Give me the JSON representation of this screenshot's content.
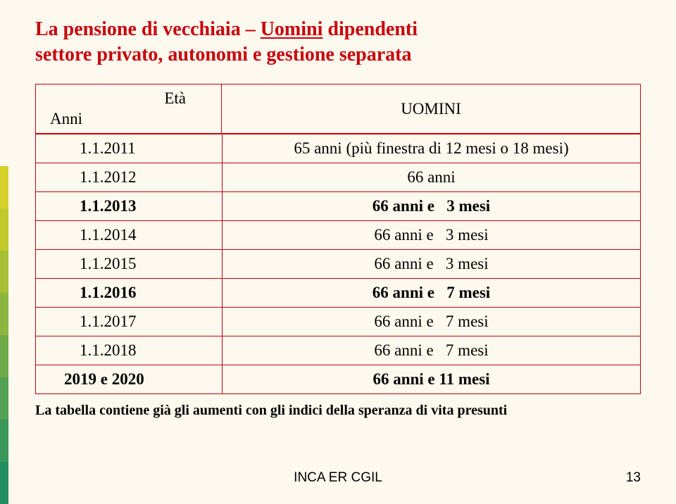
{
  "title": {
    "line1_part1": "La pensione di vecchiaia – ",
    "line1_underlined": "Uomini",
    "line1_part2": " dipendenti",
    "line2": "settore privato, autonomi e gestione separata",
    "color": "#c8000a"
  },
  "table": {
    "border_color": "#c8000a",
    "header": {
      "left_top": "Età",
      "left_bottom": "Anni",
      "right": "UOMINI"
    },
    "rows": [
      {
        "year": "1.1.2011",
        "value": "65 anni (più finestra di 12 mesi o 18 mesi)",
        "bold": false,
        "year_indent": true
      },
      {
        "year": "1.1.2012",
        "value": "66 anni",
        "bold": false,
        "year_indent": true
      },
      {
        "year": "1.1.2013",
        "value": "66 anni e   3 mesi",
        "bold": true,
        "year_indent": true
      },
      {
        "year": "1.1.2014",
        "value": "66 anni e   3 mesi",
        "bold": false,
        "year_indent": true
      },
      {
        "year": "1.1.2015",
        "value": "66 anni e   3 mesi",
        "bold": false,
        "year_indent": true
      },
      {
        "year": "1.1.2016",
        "value": "66 anni e   7 mesi",
        "bold": true,
        "year_indent": true
      },
      {
        "year": "1.1.2017",
        "value": "66 anni e   7 mesi",
        "bold": false,
        "year_indent": true
      },
      {
        "year": "1.1.2018",
        "value": "66 anni e   7 mesi",
        "bold": false,
        "year_indent": true
      },
      {
        "year": "2019 e 2020",
        "value": "66 anni e 11 mesi",
        "bold": true,
        "year_indent": false
      }
    ]
  },
  "footnote": "La tabella contiene già gli aumenti con gli indici della speranza di vita presunti",
  "footer": {
    "text": "INCA  ER CGIL",
    "page_number": "13"
  },
  "sidebar_colors": [
    "#d6d02a",
    "#c3c92b",
    "#a8bf34",
    "#8bb63f",
    "#6fab49",
    "#53a152",
    "#3a975a",
    "#238d61"
  ],
  "background_color": "#fdf9ee"
}
